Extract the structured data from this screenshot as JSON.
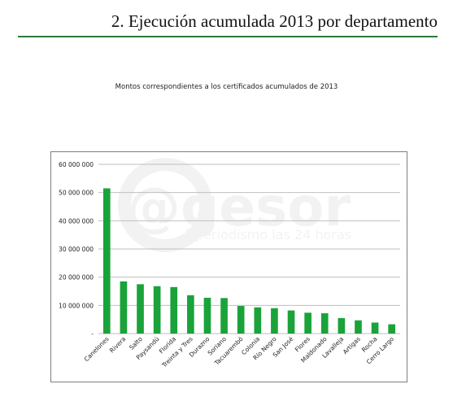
{
  "page": {
    "heading": "2. Ejecución acumulada 2013 por departamento"
  },
  "watermark": {
    "logo": "@gesor",
    "tagline": "periodismo las 24 horas"
  },
  "colors": {
    "bar": "#1aa33a",
    "rule": "#2e7a37",
    "grid": "#bfbfbf",
    "frame": "#7f7f7f"
  },
  "chart_data": {
    "type": "bar",
    "title": "Montos correspondientes a los certificados acumulados de 2013",
    "xlabel": "",
    "ylabel": "",
    "ylim": [
      0,
      60000000
    ],
    "yticks": [
      0,
      10000000,
      20000000,
      30000000,
      40000000,
      50000000,
      60000000
    ],
    "ytick_labels": [
      "-",
      "10 000 000",
      "20 000 000",
      "30 000 000",
      "40 000 000",
      "50 000 000",
      "60 000 000"
    ],
    "grid": true,
    "legend": "none",
    "categories": [
      "Canelones",
      "Rivera",
      "Salto",
      "Paysandú",
      "Florida",
      "Treinta y Tres",
      "Durazno",
      "Soriano",
      "Tacuarembó",
      "Colonia",
      "Río Negro",
      "San José",
      "Flores",
      "Maldonado",
      "Lavalleja",
      "Artigas",
      "Rocha",
      "Cerro Largo"
    ],
    "values": [
      51500000,
      18500000,
      17500000,
      16800000,
      16500000,
      13600000,
      12700000,
      12600000,
      9800000,
      9300000,
      9000000,
      8200000,
      7400000,
      7200000,
      5500000,
      4700000,
      3900000,
      3300000
    ]
  }
}
